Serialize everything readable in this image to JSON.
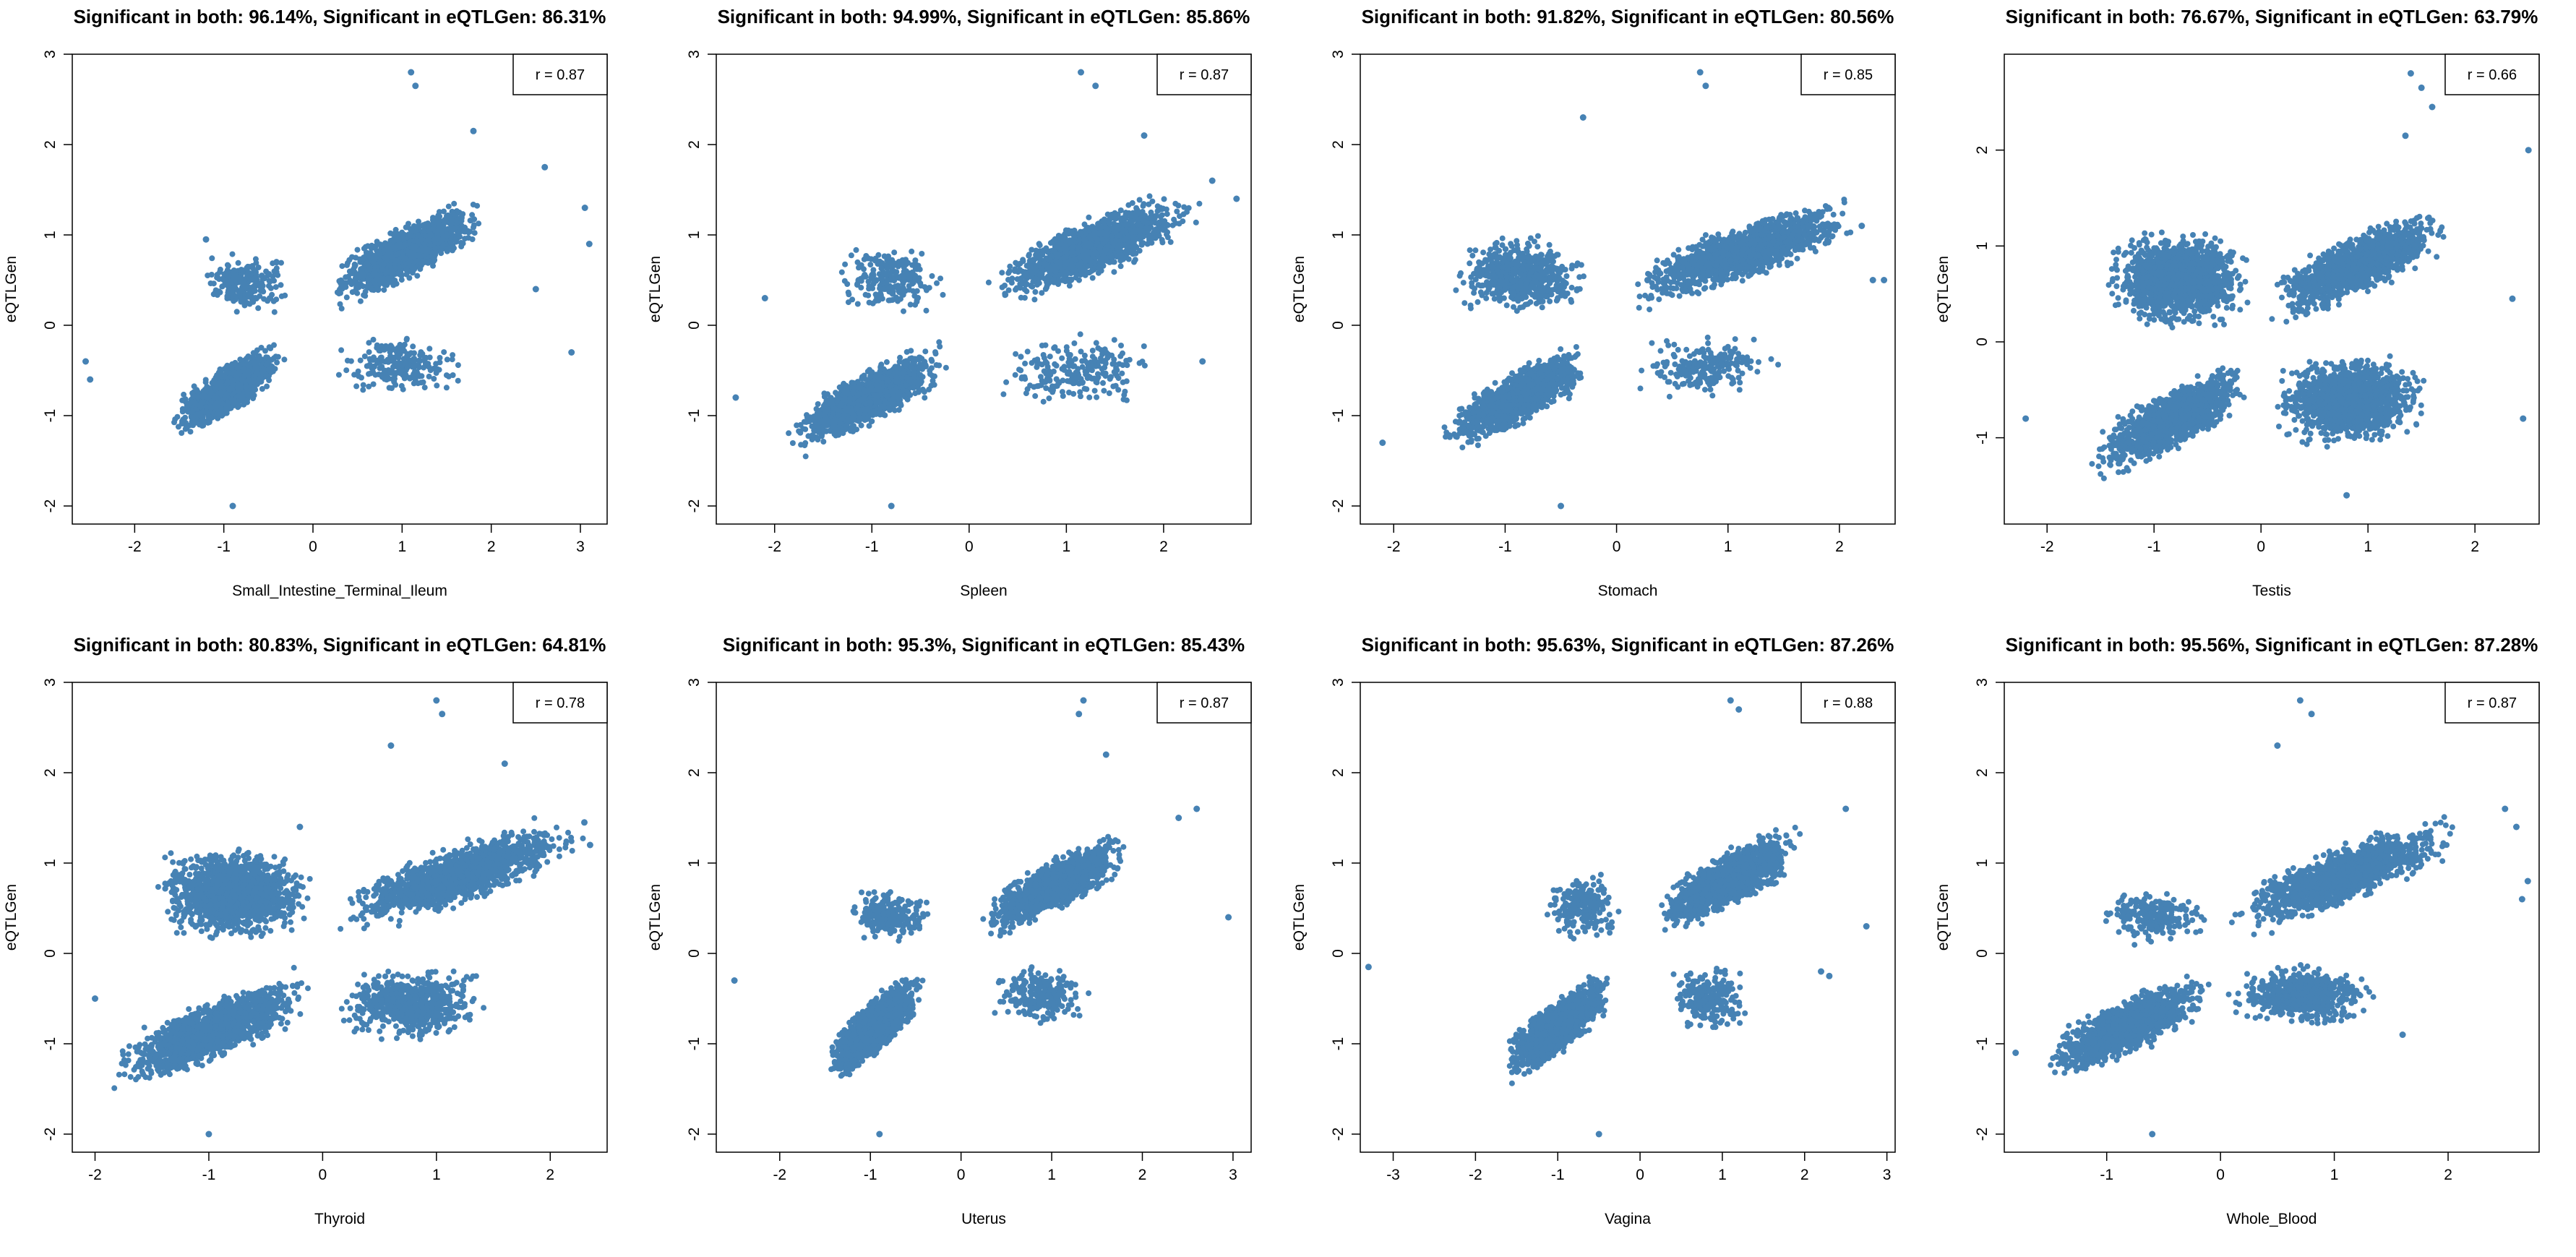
{
  "colors": {
    "point": "#4682b4",
    "axis": "#000000",
    "background": "#ffffff"
  },
  "chart_data": [
    {
      "type": "scatter",
      "title": "Significant in both: 96.14%, Significant in eQTLGen: 86.31%",
      "xlabel": "Small_Intestine_Terminal_Ileum",
      "ylabel": "eQTLGen",
      "legend": "r = 0.87",
      "legend_position": "top-right",
      "xlim": [
        -2.7,
        3.3
      ],
      "ylim": [
        -2.2,
        3.0
      ],
      "xticks": [
        -2,
        -1,
        0,
        1,
        2,
        3
      ],
      "yticks": [
        -2,
        -1,
        0,
        1,
        2,
        3
      ],
      "clusters": [
        {
          "quadrant": "upper-right",
          "x": [
            0.1,
            2.0
          ],
          "y": [
            0.02,
            1.6
          ],
          "density": "high"
        },
        {
          "quadrant": "lower-left",
          "x": [
            -1.6,
            -0.3
          ],
          "y": [
            -1.4,
            -0.02
          ],
          "density": "high"
        },
        {
          "quadrant": "upper-left",
          "x": [
            -1.3,
            -0.2
          ],
          "y": [
            0.02,
            0.9
          ],
          "density": "low"
        },
        {
          "quadrant": "lower-right",
          "x": [
            0.2,
            1.8
          ],
          "y": [
            -0.9,
            -0.02
          ],
          "density": "low"
        }
      ],
      "outliers": [
        [
          1.1,
          2.8
        ],
        [
          1.15,
          2.65
        ],
        [
          1.8,
          2.15
        ],
        [
          2.6,
          1.75
        ],
        [
          3.05,
          1.3
        ],
        [
          3.1,
          0.9
        ],
        [
          2.9,
          -0.3
        ],
        [
          2.5,
          0.4
        ],
        [
          -2.55,
          -0.4
        ],
        [
          -2.5,
          -0.6
        ],
        [
          -1.2,
          0.95
        ],
        [
          -0.9,
          -2.0
        ]
      ]
    },
    {
      "type": "scatter",
      "title": "Significant in both: 94.99%, Significant in eQTLGen: 85.86%",
      "xlabel": "Spleen",
      "ylabel": "eQTLGen",
      "legend": "r = 0.87",
      "legend_position": "top-right",
      "xlim": [
        -2.6,
        2.9
      ],
      "ylim": [
        -2.2,
        3.0
      ],
      "xticks": [
        -2,
        -1,
        0,
        1,
        2
      ],
      "yticks": [
        -2,
        -1,
        0,
        1,
        2,
        3
      ],
      "clusters": [
        {
          "quadrant": "upper-right",
          "x": [
            0.15,
            2.4
          ],
          "y": [
            0.02,
            1.7
          ],
          "density": "high"
        },
        {
          "quadrant": "lower-left",
          "x": [
            -1.9,
            -0.2
          ],
          "y": [
            -1.6,
            -0.02
          ],
          "density": "high"
        },
        {
          "quadrant": "upper-left",
          "x": [
            -1.4,
            -0.2
          ],
          "y": [
            0.02,
            1.0
          ],
          "density": "low"
        },
        {
          "quadrant": "lower-right",
          "x": [
            0.2,
            2.0
          ],
          "y": [
            -1.0,
            -0.02
          ],
          "density": "low"
        }
      ],
      "outliers": [
        [
          1.15,
          2.8
        ],
        [
          1.3,
          2.65
        ],
        [
          2.5,
          1.6
        ],
        [
          2.75,
          1.4
        ],
        [
          -2.4,
          -0.8
        ],
        [
          -2.1,
          0.3
        ],
        [
          -0.8,
          -2.0
        ],
        [
          2.4,
          -0.4
        ],
        [
          1.8,
          2.1
        ]
      ]
    },
    {
      "type": "scatter",
      "title": "Significant in both: 91.82%, Significant in eQTLGen: 80.56%",
      "xlabel": "Stomach",
      "ylabel": "eQTLGen",
      "legend": "r = 0.85",
      "legend_position": "top-right",
      "xlim": [
        -2.3,
        2.5
      ],
      "ylim": [
        -2.2,
        3.0
      ],
      "xticks": [
        -2,
        -1,
        0,
        1,
        2
      ],
      "yticks": [
        -2,
        -1,
        0,
        1,
        2,
        3
      ],
      "clusters": [
        {
          "quadrant": "upper-right",
          "x": [
            0.1,
            2.2
          ],
          "y": [
            0.02,
            1.6
          ],
          "density": "high"
        },
        {
          "quadrant": "lower-left",
          "x": [
            -1.6,
            -0.2
          ],
          "y": [
            -1.6,
            -0.02
          ],
          "density": "high"
        },
        {
          "quadrant": "upper-left",
          "x": [
            -1.5,
            -0.2
          ],
          "y": [
            0.02,
            1.1
          ],
          "density": "medium"
        },
        {
          "quadrant": "lower-right",
          "x": [
            0.1,
            1.5
          ],
          "y": [
            -0.9,
            -0.02
          ],
          "density": "low"
        }
      ],
      "outliers": [
        [
          0.75,
          2.8
        ],
        [
          0.8,
          2.65
        ],
        [
          -0.3,
          2.3
        ],
        [
          2.3,
          0.5
        ],
        [
          2.4,
          0.5
        ],
        [
          -2.1,
          -1.3
        ],
        [
          -0.5,
          -2.0
        ],
        [
          1.9,
          1.3
        ],
        [
          2.2,
          1.1
        ]
      ]
    },
    {
      "type": "scatter",
      "title": "Significant in both: 76.67%, Significant in eQTLGen: 63.79%",
      "xlabel": "Testis",
      "ylabel": "eQTLGen",
      "legend": "r = 0.66",
      "legend_position": "top-right",
      "xlim": [
        -2.4,
        2.6
      ],
      "ylim": [
        -1.9,
        3.0
      ],
      "xticks": [
        -2,
        -1,
        0,
        1,
        2
      ],
      "yticks": [
        -1,
        0,
        1,
        2
      ],
      "clusters": [
        {
          "quadrant": "upper-right",
          "x": [
            0.05,
            1.8
          ],
          "y": [
            0.02,
            1.6
          ],
          "density": "high"
        },
        {
          "quadrant": "lower-left",
          "x": [
            -1.6,
            -0.05
          ],
          "y": [
            -1.6,
            -0.02
          ],
          "density": "high"
        },
        {
          "quadrant": "upper-left",
          "x": [
            -1.5,
            -0.05
          ],
          "y": [
            0.02,
            1.3
          ],
          "density": "high"
        },
        {
          "quadrant": "lower-right",
          "x": [
            0.05,
            1.6
          ],
          "y": [
            -1.2,
            -0.02
          ],
          "density": "high"
        }
      ],
      "outliers": [
        [
          1.4,
          2.8
        ],
        [
          1.5,
          2.65
        ],
        [
          1.6,
          2.45
        ],
        [
          1.35,
          2.15
        ],
        [
          2.5,
          2.0
        ],
        [
          2.45,
          -0.8
        ],
        [
          2.35,
          0.45
        ],
        [
          -2.2,
          -0.8
        ],
        [
          0.8,
          -1.6
        ]
      ]
    },
    {
      "type": "scatter",
      "title": "Significant in both: 80.83%, Significant in eQTLGen: 64.81%",
      "xlabel": "Thyroid",
      "ylabel": "eQTLGen",
      "legend": "r = 0.78",
      "legend_position": "top-right",
      "xlim": [
        -2.2,
        2.5
      ],
      "ylim": [
        -2.2,
        3.0
      ],
      "xticks": [
        -2,
        -1,
        0,
        1,
        2
      ],
      "yticks": [
        -2,
        -1,
        0,
        1,
        2,
        3
      ],
      "clusters": [
        {
          "quadrant": "upper-right",
          "x": [
            0.05,
            2.3
          ],
          "y": [
            0.02,
            1.7
          ],
          "density": "high"
        },
        {
          "quadrant": "lower-left",
          "x": [
            -1.9,
            -0.05
          ],
          "y": [
            -1.7,
            -0.02
          ],
          "density": "high"
        },
        {
          "quadrant": "upper-left",
          "x": [
            -1.5,
            -0.05
          ],
          "y": [
            0.02,
            1.3
          ],
          "density": "high"
        },
        {
          "quadrant": "lower-right",
          "x": [
            0.05,
            1.5
          ],
          "y": [
            -1.1,
            -0.02
          ],
          "density": "medium"
        }
      ],
      "outliers": [
        [
          1.0,
          2.8
        ],
        [
          1.05,
          2.65
        ],
        [
          0.6,
          2.3
        ],
        [
          1.6,
          2.1
        ],
        [
          2.35,
          1.2
        ],
        [
          2.3,
          1.45
        ],
        [
          -2.0,
          -0.5
        ],
        [
          -1.0,
          -2.0
        ],
        [
          -0.2,
          1.4
        ]
      ]
    },
    {
      "type": "scatter",
      "title": "Significant in both: 95.3%, Significant in eQTLGen: 85.43%",
      "xlabel": "Uterus",
      "ylabel": "eQTLGen",
      "legend": "r = 0.87",
      "legend_position": "top-right",
      "xlim": [
        -2.7,
        3.2
      ],
      "ylim": [
        -2.2,
        3.0
      ],
      "xticks": [
        -2,
        -1,
        0,
        1,
        2,
        3
      ],
      "yticks": [
        -2,
        -1,
        0,
        1,
        2,
        3
      ],
      "clusters": [
        {
          "quadrant": "upper-right",
          "x": [
            0.2,
            1.9
          ],
          "y": [
            0.02,
            1.5
          ],
          "density": "high"
        },
        {
          "quadrant": "lower-left",
          "x": [
            -1.5,
            -0.4
          ],
          "y": [
            -1.6,
            -0.02
          ],
          "density": "high"
        },
        {
          "quadrant": "upper-left",
          "x": [
            -1.3,
            -0.3
          ],
          "y": [
            0.02,
            0.8
          ],
          "density": "low"
        },
        {
          "quadrant": "lower-right",
          "x": [
            0.3,
            1.5
          ],
          "y": [
            -0.9,
            -0.02
          ],
          "density": "low"
        }
      ],
      "outliers": [
        [
          1.35,
          2.8
        ],
        [
          1.3,
          2.65
        ],
        [
          2.4,
          1.5
        ],
        [
          2.6,
          1.6
        ],
        [
          2.95,
          0.4
        ],
        [
          -2.5,
          -0.3
        ],
        [
          -0.9,
          -2.0
        ],
        [
          1.6,
          2.2
        ]
      ]
    },
    {
      "type": "scatter",
      "title": "Significant in both: 95.63%, Significant in eQTLGen: 87.26%",
      "xlabel": "Vagina",
      "ylabel": "eQTLGen",
      "legend": "r = 0.88",
      "legend_position": "top-right",
      "xlim": [
        -3.4,
        3.1
      ],
      "ylim": [
        -2.2,
        3.0
      ],
      "xticks": [
        -3,
        -2,
        -1,
        0,
        1,
        2,
        3
      ],
      "yticks": [
        -2,
        -1,
        0,
        1,
        2,
        3
      ],
      "clusters": [
        {
          "quadrant": "upper-right",
          "x": [
            0.15,
            2.0
          ],
          "y": [
            0.02,
            1.6
          ],
          "density": "high"
        },
        {
          "quadrant": "lower-left",
          "x": [
            -1.7,
            -0.3
          ],
          "y": [
            -1.6,
            -0.02
          ],
          "density": "high"
        },
        {
          "quadrant": "upper-left",
          "x": [
            -1.2,
            -0.2
          ],
          "y": [
            0.02,
            1.0
          ],
          "density": "low"
        },
        {
          "quadrant": "lower-right",
          "x": [
            0.3,
            1.4
          ],
          "y": [
            -1.0,
            -0.02
          ],
          "density": "low"
        }
      ],
      "outliers": [
        [
          1.1,
          2.8
        ],
        [
          1.2,
          2.7
        ],
        [
          2.75,
          0.3
        ],
        [
          2.5,
          1.6
        ],
        [
          -3.3,
          -0.15
        ],
        [
          -0.5,
          -2.0
        ],
        [
          2.2,
          -0.2
        ],
        [
          2.3,
          -0.25
        ]
      ]
    },
    {
      "type": "scatter",
      "title": "Significant in both: 95.56%, Significant in eQTLGen: 87.28%",
      "xlabel": "Whole_Blood",
      "ylabel": "eQTLGen",
      "legend": "r = 0.87",
      "legend_position": "top-right",
      "xlim": [
        -1.9,
        2.8
      ],
      "ylim": [
        -2.2,
        3.0
      ],
      "xticks": [
        -1,
        0,
        1,
        2
      ],
      "yticks": [
        -2,
        -1,
        0,
        1,
        2,
        3
      ],
      "clusters": [
        {
          "quadrant": "upper-right",
          "x": [
            0.05,
            2.1
          ],
          "y": [
            0.02,
            1.7
          ],
          "density": "high"
        },
        {
          "quadrant": "lower-left",
          "x": [
            -1.6,
            -0.05
          ],
          "y": [
            -1.6,
            -0.02
          ],
          "density": "high"
        },
        {
          "quadrant": "upper-left",
          "x": [
            -1.1,
            -0.05
          ],
          "y": [
            0.02,
            0.8
          ],
          "density": "low"
        },
        {
          "quadrant": "lower-right",
          "x": [
            0.05,
            1.4
          ],
          "y": [
            -0.9,
            -0.02
          ],
          "density": "medium"
        }
      ],
      "outliers": [
        [
          0.7,
          2.8
        ],
        [
          0.8,
          2.65
        ],
        [
          0.5,
          2.3
        ],
        [
          2.5,
          1.6
        ],
        [
          2.6,
          1.4
        ],
        [
          2.65,
          0.6
        ],
        [
          -1.8,
          -1.1
        ],
        [
          -0.6,
          -2.0
        ],
        [
          1.6,
          -0.9
        ],
        [
          2.7,
          0.8
        ]
      ]
    }
  ]
}
